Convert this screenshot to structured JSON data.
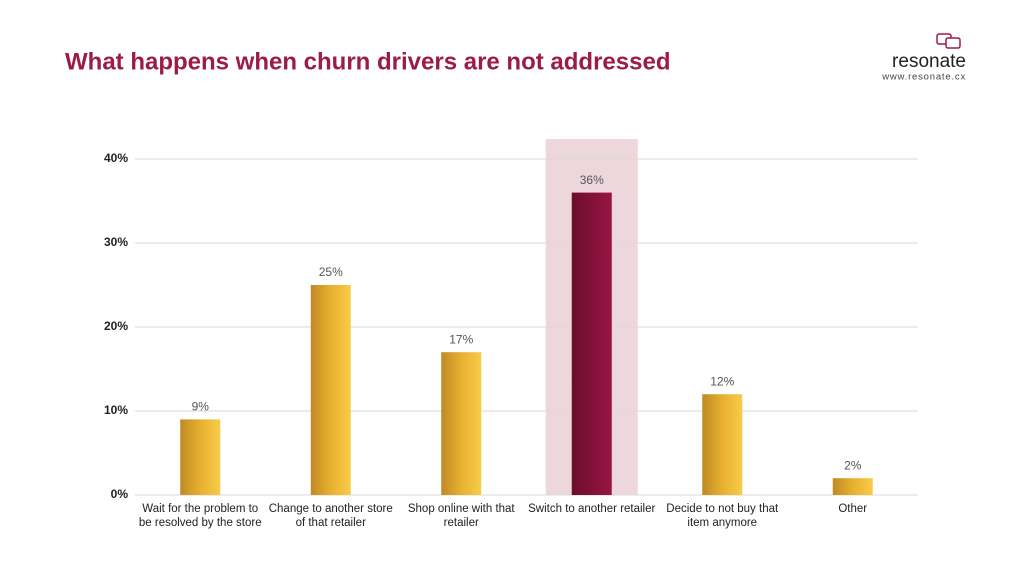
{
  "brand": {
    "name": "resonate",
    "url": "www.resonate.cx"
  },
  "chart_data": {
    "type": "bar",
    "title": "What happens when churn drivers are not addressed",
    "categories": [
      "Wait for the problem to be resolved by the store",
      "Change to another store of that retailer",
      "Shop online with that retailer",
      "Switch to another retailer",
      "Decide to not buy that item anymore",
      "Other"
    ],
    "values": [
      9,
      25,
      17,
      36,
      12,
      2
    ],
    "value_labels": [
      "9%",
      "25%",
      "17%",
      "36%",
      "12%",
      "2%"
    ],
    "color": "#e8b030",
    "highlight": 3,
    "highlight_color": "#8b1238",
    "ylim": [
      0,
      40
    ],
    "yticks": [
      {
        "value": 0,
        "label": "0%"
      },
      {
        "value": 10,
        "label": "10%"
      },
      {
        "value": 20,
        "label": "20%"
      },
      {
        "value": 30,
        "label": "30%"
      },
      {
        "value": 40,
        "label": "40%"
      }
    ],
    "grid": true
  }
}
